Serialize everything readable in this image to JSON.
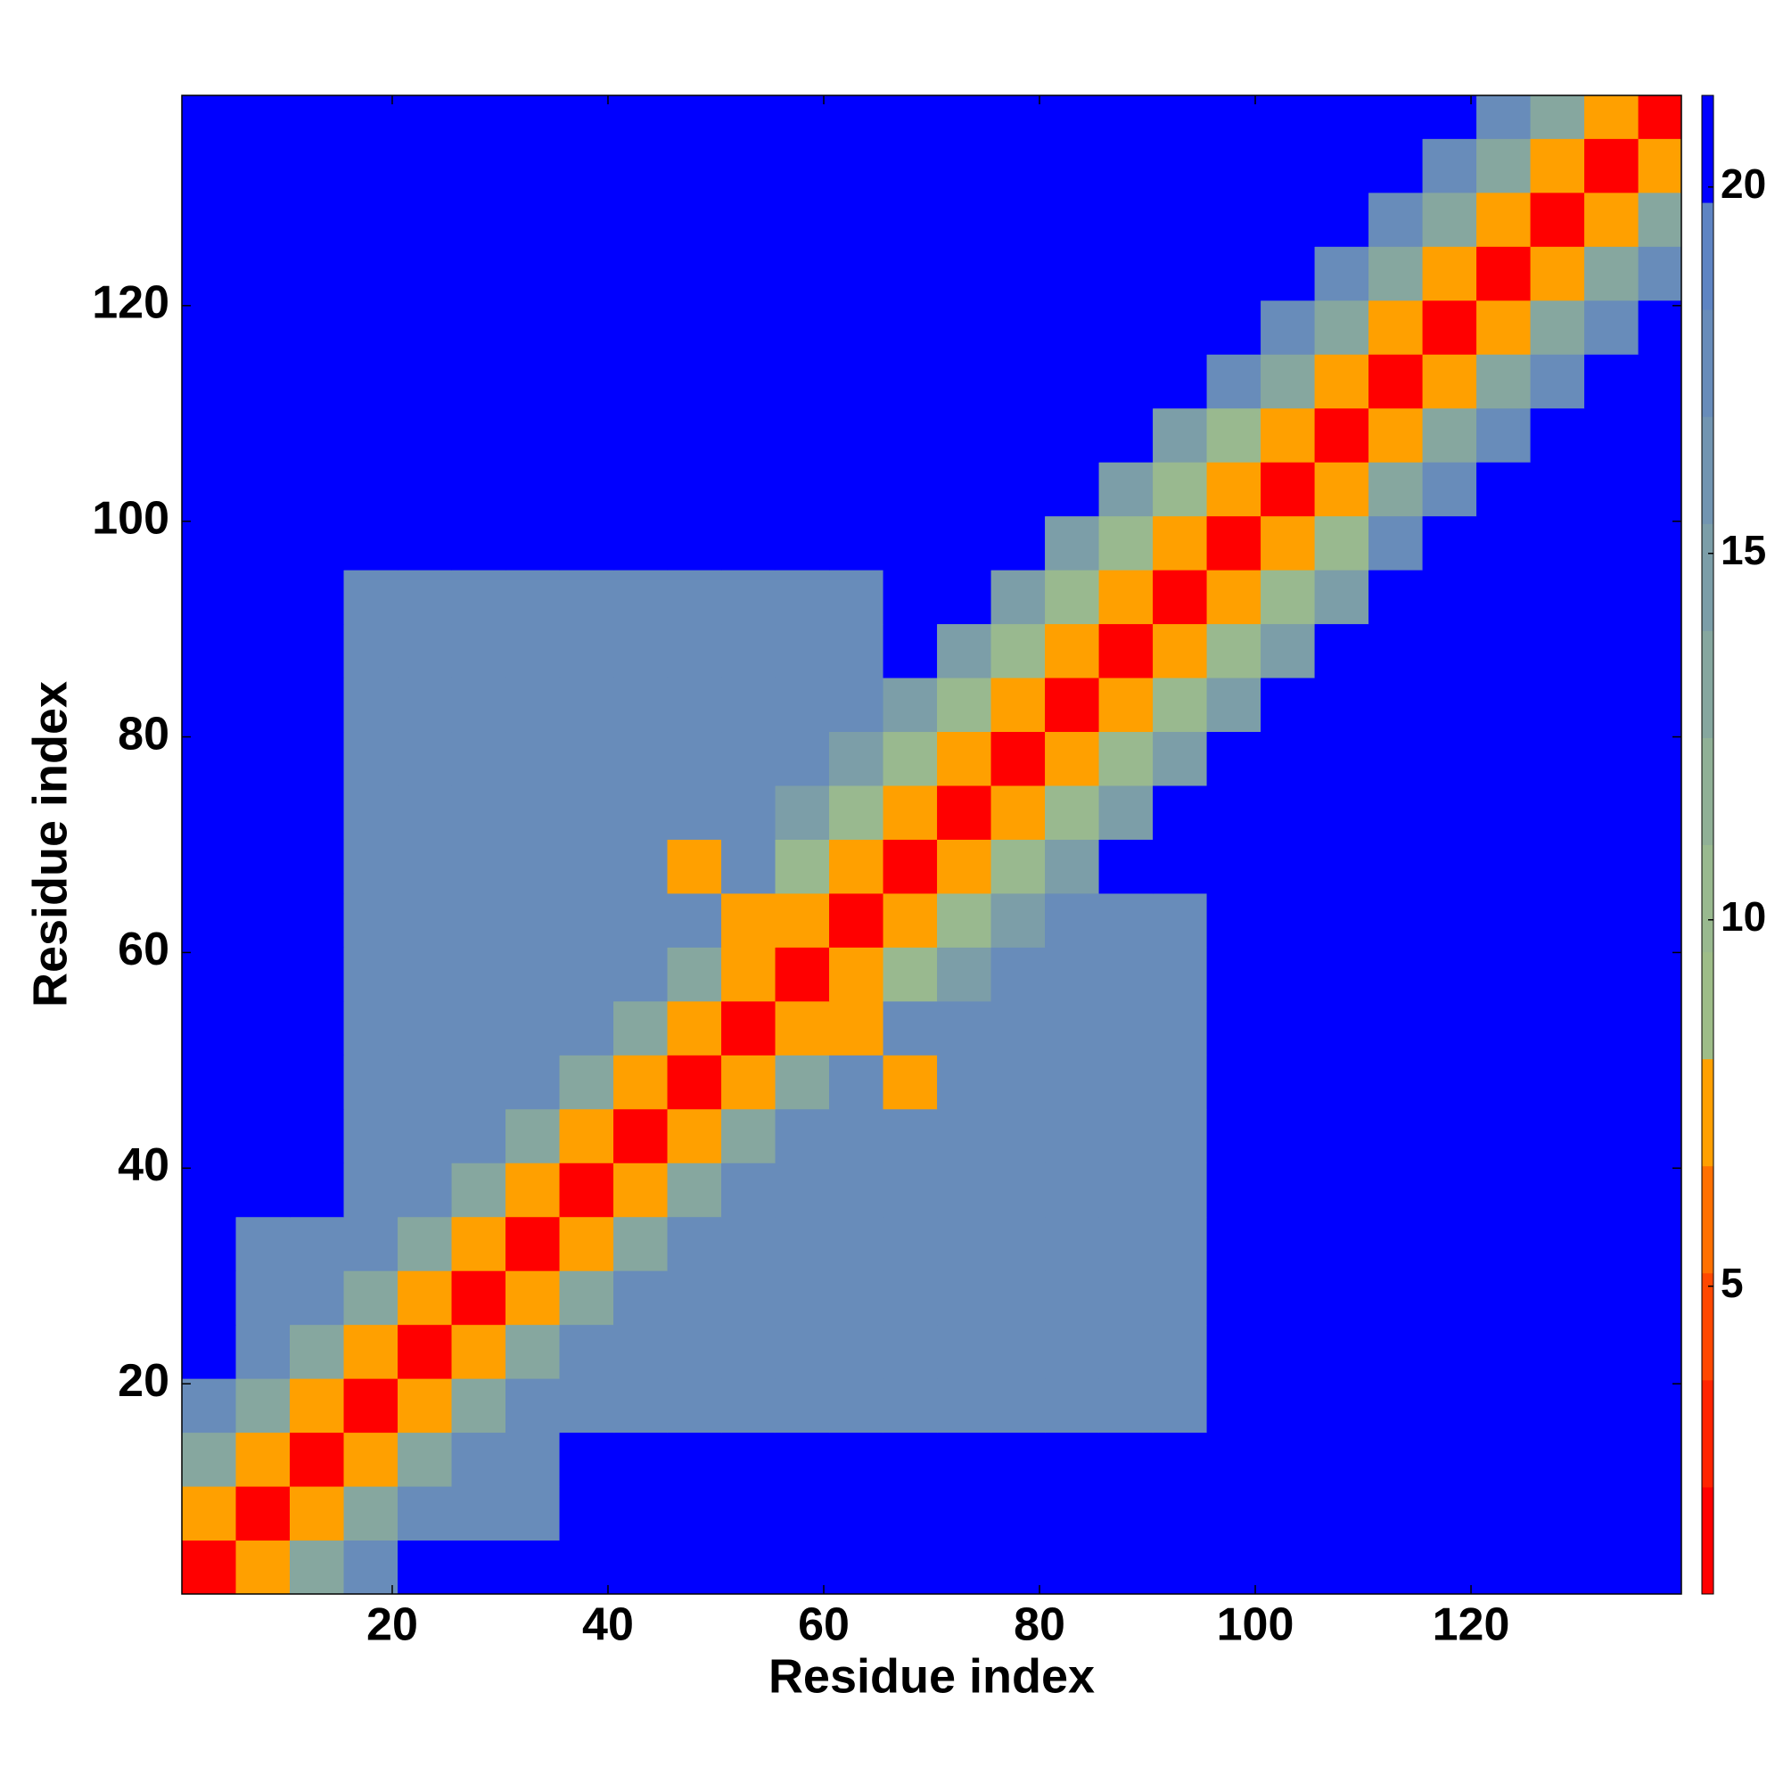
{
  "chart_data": {
    "type": "heatmap",
    "x_label": "Residue index",
    "y_label": "Residue index",
    "x": [
      3,
      8,
      13,
      18,
      23,
      28,
      33,
      38,
      43,
      48,
      53,
      58,
      63,
      68,
      73,
      78,
      83,
      88,
      93,
      98,
      103,
      108,
      113,
      118,
      123,
      128,
      133,
      138
    ],
    "y": [
      3,
      8,
      13,
      18,
      23,
      28,
      33,
      38,
      43,
      48,
      53,
      58,
      63,
      68,
      73,
      78,
      83,
      88,
      93,
      98,
      103,
      108,
      113,
      118,
      123,
      128,
      133,
      138
    ],
    "values": [
      [
        2,
        7,
        13,
        17,
        21,
        21,
        21,
        21,
        21,
        21,
        21,
        21,
        21,
        21,
        21,
        21,
        21,
        21,
        21,
        21,
        21,
        21,
        21,
        21,
        21,
        21,
        21,
        21
      ],
      [
        7,
        2,
        7,
        13,
        17,
        17,
        17,
        21,
        21,
        21,
        21,
        21,
        21,
        21,
        21,
        21,
        21,
        21,
        21,
        21,
        21,
        21,
        21,
        21,
        21,
        21,
        21,
        21
      ],
      [
        13,
        7,
        2,
        7,
        13,
        17,
        17,
        21,
        21,
        21,
        21,
        21,
        21,
        21,
        21,
        21,
        21,
        21,
        21,
        21,
        21,
        21,
        21,
        21,
        21,
        21,
        21,
        21
      ],
      [
        17,
        13,
        7,
        2,
        7,
        13,
        17,
        17,
        17,
        17,
        17,
        17,
        17,
        17,
        17,
        17,
        17,
        17,
        17,
        21,
        21,
        21,
        21,
        21,
        21,
        21,
        21,
        21
      ],
      [
        21,
        17,
        13,
        7,
        2,
        7,
        13,
        17,
        17,
        17,
        17,
        17,
        17,
        17,
        17,
        17,
        17,
        17,
        17,
        21,
        21,
        21,
        21,
        21,
        21,
        21,
        21,
        21
      ],
      [
        21,
        17,
        17,
        13,
        7,
        2,
        7,
        13,
        17,
        17,
        17,
        17,
        17,
        17,
        17,
        17,
        17,
        17,
        17,
        21,
        21,
        21,
        21,
        21,
        21,
        21,
        21,
        21
      ],
      [
        21,
        17,
        17,
        17,
        13,
        7,
        2,
        7,
        13,
        17,
        17,
        17,
        17,
        17,
        17,
        17,
        17,
        17,
        17,
        21,
        21,
        21,
        21,
        21,
        21,
        21,
        21,
        21
      ],
      [
        21,
        21,
        21,
        17,
        17,
        13,
        7,
        2,
        7,
        13,
        17,
        17,
        17,
        17,
        17,
        17,
        17,
        17,
        17,
        21,
        21,
        21,
        21,
        21,
        21,
        21,
        21,
        21
      ],
      [
        21,
        21,
        21,
        17,
        17,
        17,
        13,
        7,
        2,
        7,
        13,
        17,
        17,
        17,
        17,
        17,
        17,
        17,
        17,
        21,
        21,
        21,
        21,
        21,
        21,
        21,
        21,
        21
      ],
      [
        21,
        21,
        21,
        17,
        17,
        17,
        17,
        13,
        7,
        2,
        7,
        13,
        17,
        8,
        17,
        17,
        17,
        17,
        17,
        21,
        21,
        21,
        21,
        21,
        21,
        21,
        21,
        21
      ],
      [
        21,
        21,
        21,
        17,
        17,
        17,
        17,
        17,
        13,
        7,
        2,
        7,
        8,
        17,
        17,
        17,
        17,
        17,
        17,
        21,
        21,
        21,
        21,
        21,
        21,
        21,
        21,
        21
      ],
      [
        21,
        21,
        21,
        17,
        17,
        17,
        17,
        17,
        17,
        13,
        7,
        2,
        7,
        11,
        15,
        17,
        17,
        17,
        17,
        21,
        21,
        21,
        21,
        21,
        21,
        21,
        21,
        21
      ],
      [
        21,
        21,
        21,
        17,
        17,
        17,
        17,
        17,
        17,
        17,
        8,
        7,
        2,
        7,
        11,
        15,
        17,
        17,
        17,
        21,
        21,
        21,
        21,
        21,
        21,
        21,
        21,
        21
      ],
      [
        21,
        21,
        21,
        17,
        17,
        17,
        17,
        17,
        17,
        8,
        17,
        11,
        7,
        2,
        7,
        11,
        15,
        21,
        21,
        21,
        21,
        21,
        21,
        21,
        21,
        21,
        21,
        21
      ],
      [
        21,
        21,
        21,
        17,
        17,
        17,
        17,
        17,
        17,
        17,
        17,
        15,
        11,
        7,
        2,
        7,
        11,
        15,
        21,
        21,
        21,
        21,
        21,
        21,
        21,
        21,
        21,
        21
      ],
      [
        21,
        21,
        21,
        17,
        17,
        17,
        17,
        17,
        17,
        17,
        17,
        17,
        15,
        11,
        7,
        2,
        7,
        11,
        15,
        21,
        21,
        21,
        21,
        21,
        21,
        21,
        21,
        21
      ],
      [
        21,
        21,
        21,
        17,
        17,
        17,
        17,
        17,
        17,
        17,
        17,
        17,
        17,
        15,
        11,
        7,
        2,
        7,
        11,
        15,
        21,
        21,
        21,
        21,
        21,
        21,
        21,
        21
      ],
      [
        21,
        21,
        21,
        17,
        17,
        17,
        17,
        17,
        17,
        17,
        17,
        17,
        17,
        21,
        15,
        11,
        7,
        2,
        7,
        11,
        15,
        21,
        21,
        21,
        21,
        21,
        21,
        21
      ],
      [
        21,
        21,
        21,
        17,
        17,
        17,
        17,
        17,
        17,
        17,
        17,
        17,
        17,
        21,
        21,
        15,
        11,
        7,
        2,
        7,
        11,
        15,
        21,
        21,
        21,
        21,
        21,
        21
      ],
      [
        21,
        21,
        21,
        21,
        21,
        21,
        21,
        21,
        21,
        21,
        21,
        21,
        21,
        21,
        21,
        21,
        15,
        11,
        7,
        2,
        7,
        11,
        17,
        21,
        21,
        21,
        21,
        21
      ],
      [
        21,
        21,
        21,
        21,
        21,
        21,
        21,
        21,
        21,
        21,
        21,
        21,
        21,
        21,
        21,
        21,
        21,
        15,
        11,
        7,
        2,
        7,
        13,
        17,
        21,
        21,
        21,
        21
      ],
      [
        21,
        21,
        21,
        21,
        21,
        21,
        21,
        21,
        21,
        21,
        21,
        21,
        21,
        21,
        21,
        21,
        21,
        21,
        15,
        11,
        7,
        2,
        7,
        13,
        17,
        21,
        21,
        21
      ],
      [
        21,
        21,
        21,
        21,
        21,
        21,
        21,
        21,
        21,
        21,
        21,
        21,
        21,
        21,
        21,
        21,
        21,
        21,
        21,
        17,
        13,
        7,
        2,
        7,
        13,
        17,
        21,
        21
      ],
      [
        21,
        21,
        21,
        21,
        21,
        21,
        21,
        21,
        21,
        21,
        21,
        21,
        21,
        21,
        21,
        21,
        21,
        21,
        21,
        21,
        17,
        13,
        7,
        2,
        7,
        13,
        17,
        21
      ],
      [
        21,
        21,
        21,
        21,
        21,
        21,
        21,
        21,
        21,
        21,
        21,
        21,
        21,
        21,
        21,
        21,
        21,
        21,
        21,
        21,
        21,
        17,
        13,
        7,
        2,
        7,
        13,
        17
      ],
      [
        21,
        21,
        21,
        21,
        21,
        21,
        21,
        21,
        21,
        21,
        21,
        21,
        21,
        21,
        21,
        21,
        21,
        21,
        21,
        21,
        21,
        21,
        17,
        13,
        7,
        2,
        7,
        13
      ],
      [
        21,
        21,
        21,
        21,
        21,
        21,
        21,
        21,
        21,
        21,
        21,
        21,
        21,
        21,
        21,
        21,
        21,
        21,
        21,
        21,
        21,
        21,
        21,
        17,
        13,
        7,
        2,
        7
      ],
      [
        21,
        21,
        21,
        21,
        21,
        21,
        21,
        21,
        21,
        21,
        21,
        21,
        21,
        21,
        21,
        21,
        21,
        21,
        21,
        21,
        21,
        21,
        21,
        21,
        17,
        13,
        7,
        2
      ]
    ],
    "xlim": [
      0.5,
      139.5
    ],
    "ylim": [
      0.5,
      139.5
    ],
    "xticks": [
      20,
      40,
      60,
      80,
      100,
      120
    ],
    "yticks": [
      20,
      40,
      60,
      80,
      100,
      120
    ],
    "colorbar": {
      "lim": [
        0.8,
        21.25
      ],
      "ticks": [
        5,
        10,
        15,
        20
      ],
      "colors": [
        "#ff0000",
        "#ff2400",
        "#ff4800",
        "#ff7000",
        "#ffa000",
        "#9ebd88",
        "#99b98f",
        "#90b096",
        "#86a79f",
        "#7c9ea8",
        "#7295b1",
        "#688cba",
        "#5e84c3",
        "#0000ff"
      ]
    }
  }
}
